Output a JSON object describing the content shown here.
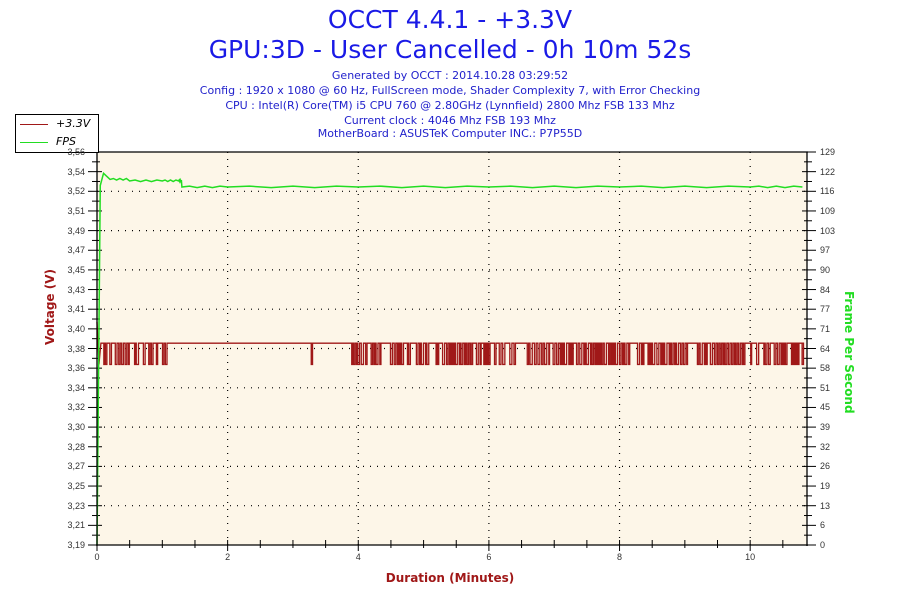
{
  "header": {
    "title_line1": "OCCT 4.4.1 - +3.3V",
    "title_line2": "GPU:3D - User Cancelled - 0h 10m 52s",
    "generated": "Generated by OCCT : 2014.10.28 03:29:52",
    "config": "Config : 1920 x 1080 @ 60 Hz, FullScreen mode, Shader Complexity 7, with Error Checking",
    "cpu": "CPU : Intel(R) Core(TM) i5 CPU 760 @ 2.80GHz (Lynnfield) 2800 Mhz FSB 133 Mhz",
    "clock": "Current clock : 4046 Mhz FSB 193 Mhz",
    "motherboard": "MotherBoard : ASUSTeK Computer INC.: P7P55D"
  },
  "legend": {
    "items": [
      {
        "label": "+3.3V",
        "color": "#a01818"
      },
      {
        "label": "FPS",
        "color": "#22dd22"
      }
    ]
  },
  "axes": {
    "left_label": "Voltage (V)",
    "right_label": "Frame Per Second",
    "x_label": "Duration (Minutes)",
    "left_ticks": [
      "3.56",
      "3.54",
      "3.52",
      "3.51",
      "3.49",
      "3.47",
      "3.45",
      "3.43",
      "3.41",
      "3.40",
      "3.38",
      "3.36",
      "3.34",
      "3.32",
      "3.30",
      "3.28",
      "3.27",
      "3.25",
      "3.23",
      "3.21",
      "3.19"
    ],
    "right_ticks": [
      "129",
      "122",
      "116",
      "109",
      "103",
      "97",
      "90",
      "84",
      "77",
      "71",
      "64",
      "58",
      "51",
      "45",
      "39",
      "32",
      "26",
      "19",
      "13",
      "6",
      "0"
    ],
    "x_ticks": [
      "0",
      "2",
      "4",
      "6",
      "8",
      "10"
    ]
  },
  "colors": {
    "plot_bg": "#fdf6e8",
    "voltage": "#a01818",
    "fps": "#22dd22",
    "title": "#1a1ae6"
  },
  "chart_data": {
    "type": "line",
    "title": "OCCT 4.4.1 - +3.3V",
    "subtitle": "GPU:3D - User Cancelled - 0h 10m 52s",
    "xlabel": "Duration (Minutes)",
    "ylabel": "Voltage (V)",
    "y2label": "Frame Per Second",
    "xlim": [
      0,
      10.87
    ],
    "ylim": [
      3.19,
      3.56
    ],
    "y2lim": [
      0,
      129
    ],
    "grid": true,
    "legend_position": "top-left",
    "series": [
      {
        "name": "+3.3V",
        "axis": "left",
        "description": "Oscillates between 3.38 and 3.36 V; stable at 3.38 from ~1.1 to ~3.9 min (single dip at ~3.3 min), dense toggling 3.36/3.38 from ~3.9 min to end",
        "x": [
          0,
          0.05,
          0.1,
          0.5,
          1.0,
          1.1,
          2.0,
          3.0,
          3.3,
          3.5,
          3.9,
          5.0,
          6.0,
          7.0,
          8.0,
          9.0,
          10.0,
          10.8
        ],
        "values": [
          3.4,
          3.36,
          3.38,
          3.37,
          3.37,
          3.38,
          3.38,
          3.38,
          3.36,
          3.38,
          3.37,
          3.37,
          3.37,
          3.37,
          3.37,
          3.37,
          3.37,
          3.37
        ]
      },
      {
        "name": "FPS",
        "axis": "right",
        "description": "Ramps from 0 to peak ~122 at ~0.1 min, ~119-120 until ~1.25 min, then steady ~118 to end",
        "x": [
          0,
          0.05,
          0.1,
          0.2,
          0.5,
          1.0,
          1.25,
          1.3,
          2,
          4,
          6,
          8,
          10,
          10.8
        ],
        "values": [
          0,
          118,
          122,
          120,
          119.5,
          119.5,
          119.5,
          117.5,
          117.5,
          117.5,
          117.5,
          117.5,
          117.5,
          117.5
        ]
      }
    ]
  }
}
